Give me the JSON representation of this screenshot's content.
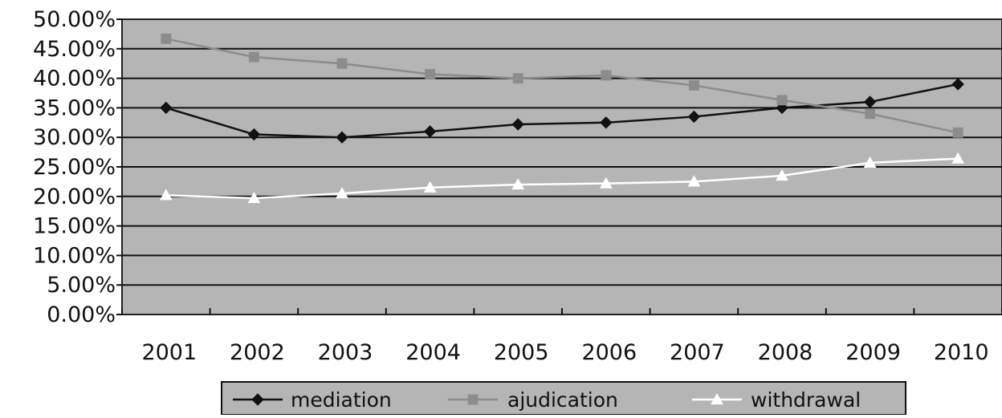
{
  "chart_data": {
    "type": "line",
    "categories": [
      "2001",
      "2002",
      "2003",
      "2004",
      "2005",
      "2006",
      "2007",
      "2008",
      "2009",
      "2010"
    ],
    "series": [
      {
        "name": "mediation",
        "values": [
          35.0,
          30.5,
          30.0,
          31.0,
          32.2,
          32.5,
          33.5,
          35.0,
          36.0,
          39.0
        ],
        "color": "#111111",
        "marker": "diamond"
      },
      {
        "name": "ajudication",
        "values": [
          46.7,
          43.6,
          42.5,
          40.7,
          40.0,
          40.5,
          38.8,
          36.3,
          34.0,
          30.8
        ],
        "color": "#8c8c8c",
        "marker": "square"
      },
      {
        "name": "withdrawal",
        "values": [
          20.2,
          19.7,
          20.5,
          21.5,
          22.0,
          22.2,
          22.5,
          23.5,
          25.7,
          26.4
        ],
        "color": "#ffffff",
        "marker": "triangle"
      }
    ],
    "y_ticks": [
      "0.00%",
      "5.00%",
      "10.00%",
      "15.00%",
      "20.00%",
      "25.00%",
      "30.00%",
      "35.00%",
      "40.00%",
      "45.00%",
      "50.00%"
    ],
    "ylim": [
      0,
      50
    ],
    "y_unit": "%",
    "grid": true,
    "legend_position": "bottom",
    "plot_background": "#b5b5b5",
    "title": "",
    "xlabel": "",
    "ylabel": ""
  }
}
